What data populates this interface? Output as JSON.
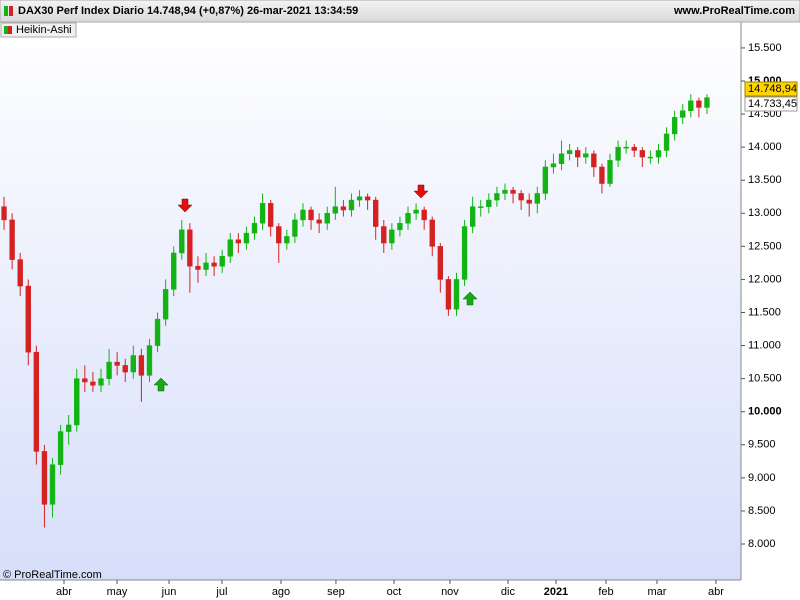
{
  "header": {
    "title": "DAX30 Perf Index Diario 14.748,94 (+0,87%) 26-mar-2021 13:34:59",
    "site": "www.ProRealTime.com",
    "indicator": "Heikin-Ashi",
    "copyright": "© ProRealTime.com"
  },
  "price_tags": [
    {
      "label": "14.748,94"
    },
    {
      "label": "14.733,45"
    }
  ],
  "chart_data": {
    "type": "candlestick",
    "up_color": "#12b312",
    "down_color": "#d42222",
    "open": [
      13100,
      12900,
      12300,
      11900,
      10900,
      9400,
      8600,
      9200,
      9700,
      9800,
      10500,
      10450,
      10400,
      10500,
      10750,
      10700,
      10600,
      10850,
      10550,
      11000,
      11400,
      11850,
      12400,
      12750,
      12200,
      12150,
      12250,
      12200,
      12350,
      12600,
      12550,
      12700,
      12850,
      13150,
      12800,
      12550,
      12650,
      12900,
      13050,
      12900,
      12850,
      13000,
      13100,
      13050,
      13200,
      13250,
      13200,
      12800,
      12550,
      12750,
      12850,
      13000,
      13050,
      12900,
      12500,
      12000,
      11550,
      12000,
      12800,
      13100,
      13100,
      13200,
      13300,
      13350,
      13300,
      13200,
      13150,
      13300,
      13700,
      13750,
      13900,
      13950,
      13850,
      13900,
      13700,
      13450,
      13800,
      14000,
      14000,
      13950,
      13850,
      13850,
      13950,
      14200,
      14450,
      14550,
      14700,
      14600
    ],
    "high": [
      13250,
      13000,
      12400,
      12000,
      11000,
      9500,
      9300,
      9800,
      9950,
      10650,
      10700,
      10600,
      10650,
      10950,
      10900,
      10800,
      11000,
      10950,
      11100,
      11500,
      12000,
      12500,
      12900,
      12850,
      12350,
      12400,
      12350,
      12450,
      12700,
      12700,
      12800,
      12950,
      13300,
      13200,
      12850,
      12750,
      13000,
      13150,
      13100,
      13000,
      13100,
      13400,
      13200,
      13300,
      13350,
      13300,
      13250,
      12900,
      12850,
      12950,
      13100,
      13150,
      13100,
      12950,
      12550,
      12050,
      12100,
      12900,
      13250,
      13200,
      13300,
      13400,
      13450,
      13400,
      13350,
      13300,
      13400,
      13800,
      13900,
      14100,
      14050,
      14000,
      14000,
      13950,
      13750,
      13900,
      14100,
      14100,
      14050,
      14000,
      13950,
      14050,
      14300,
      14550,
      14650,
      14800,
      14750,
      14800
    ],
    "low": [
      12750,
      12150,
      11750,
      10700,
      9200,
      8250,
      8400,
      9050,
      9500,
      9700,
      10300,
      10300,
      10300,
      10400,
      10550,
      10450,
      10500,
      10150,
      10450,
      10900,
      11300,
      11750,
      12300,
      11800,
      11950,
      12050,
      12050,
      12100,
      12250,
      12400,
      12450,
      12600,
      12750,
      12650,
      12250,
      12450,
      12550,
      12800,
      12750,
      12700,
      12750,
      12900,
      12950,
      12950,
      13100,
      13050,
      12600,
      12400,
      12450,
      12650,
      12750,
      12900,
      12750,
      12350,
      11800,
      11450,
      11450,
      11900,
      12700,
      12950,
      13000,
      13100,
      13200,
      13150,
      13050,
      12950,
      13000,
      13200,
      13600,
      13650,
      13800,
      13700,
      13750,
      13550,
      13300,
      13400,
      13700,
      13900,
      13850,
      13700,
      13750,
      13750,
      13850,
      14100,
      14350,
      14450,
      14450,
      14500
    ],
    "close": [
      12900,
      12300,
      11900,
      10900,
      9400,
      8600,
      9200,
      9700,
      9800,
      10500,
      10450,
      10400,
      10500,
      10750,
      10700,
      10600,
      10850,
      10550,
      11000,
      11400,
      11850,
      12400,
      12750,
      12200,
      12150,
      12250,
      12200,
      12350,
      12600,
      12550,
      12700,
      12850,
      13150,
      12800,
      12550,
      12650,
      12900,
      13050,
      12900,
      12850,
      13000,
      13100,
      13050,
      13200,
      13250,
      13200,
      12800,
      12550,
      12750,
      12850,
      13000,
      13050,
      12900,
      12500,
      12000,
      11550,
      12000,
      12800,
      13100,
      13100,
      13200,
      13300,
      13350,
      13300,
      13200,
      13150,
      13300,
      13700,
      13750,
      13900,
      13950,
      13850,
      13900,
      13700,
      13450,
      13800,
      14000,
      14000,
      13950,
      13850,
      13850,
      13950,
      14200,
      14450,
      14550,
      14700,
      14600,
      14748.94
    ],
    "ylim": [
      7456,
      15650
    ],
    "yticks": [
      {
        "value": 8000,
        "label": "8.000"
      },
      {
        "value": 8500,
        "label": "8.500"
      },
      {
        "value": 9000,
        "label": "9.000"
      },
      {
        "value": 9500,
        "label": "9.500"
      },
      {
        "value": 10000,
        "label": "10.000",
        "bold": true
      },
      {
        "value": 10500,
        "label": "10.500"
      },
      {
        "value": 11000,
        "label": "11.000"
      },
      {
        "value": 11500,
        "label": "11.500"
      },
      {
        "value": 12000,
        "label": "12.000"
      },
      {
        "value": 12500,
        "label": "12.500"
      },
      {
        "value": 13000,
        "label": "13.000"
      },
      {
        "value": 13500,
        "label": "13.500"
      },
      {
        "value": 14000,
        "label": "14.000"
      },
      {
        "value": 14500,
        "label": "14.500"
      },
      {
        "value": 15000,
        "label": "15.000",
        "bold": true
      },
      {
        "value": 15500,
        "label": "15.500"
      }
    ],
    "xticks": [
      {
        "value": 7.42,
        "label": "abr"
      },
      {
        "value": 13.98,
        "label": "may"
      },
      {
        "value": 20.42,
        "label": "jun"
      },
      {
        "value": 26.97,
        "label": "jul"
      },
      {
        "value": 34.28,
        "label": "ago"
      },
      {
        "value": 41.08,
        "label": "sep"
      },
      {
        "value": 48.26,
        "label": "oct"
      },
      {
        "value": 55.19,
        "label": "nov"
      },
      {
        "value": 62.37,
        "label": "dic"
      },
      {
        "value": 68.31,
        "label": "2021",
        "bold": true
      },
      {
        "value": 74.5,
        "label": "feb"
      },
      {
        "value": 80.81,
        "label": "mar"
      },
      {
        "value": 88.11,
        "label": "abr"
      }
    ]
  }
}
